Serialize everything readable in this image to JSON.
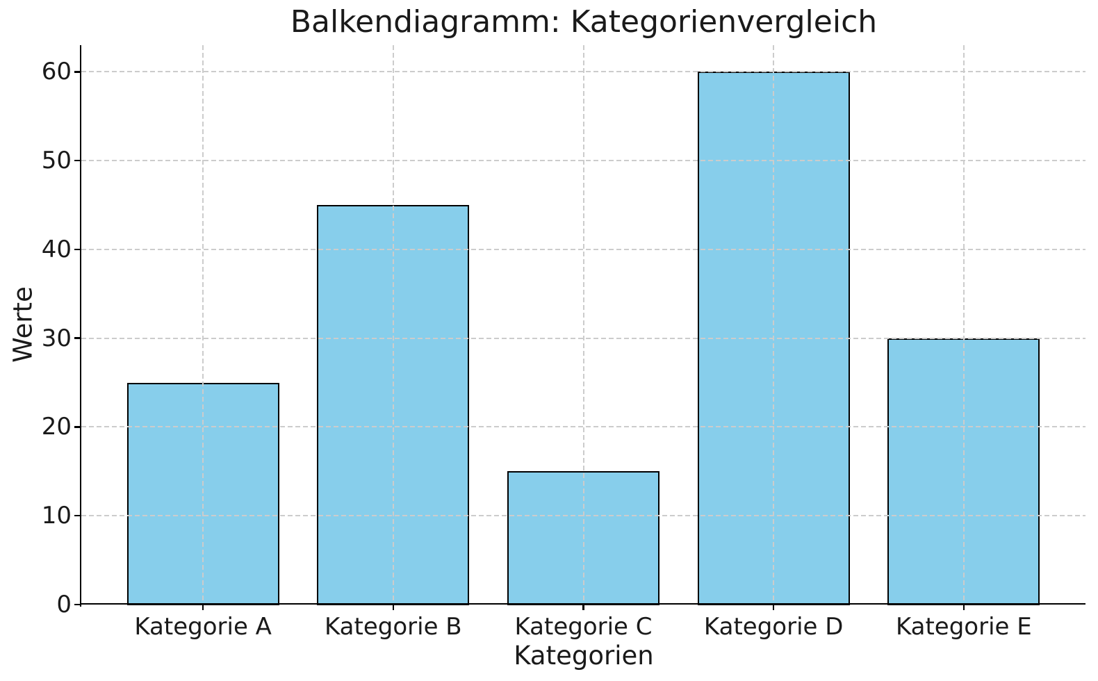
{
  "chart_data": {
    "type": "bar",
    "title": "Balkendiagramm: Kategorienvergleich",
    "xlabel": "Kategorien",
    "ylabel": "Werte",
    "categories": [
      "Kategorie A",
      "Kategorie B",
      "Kategorie C",
      "Kategorie D",
      "Kategorie E"
    ],
    "values": [
      25,
      45,
      15,
      60,
      30
    ],
    "yticks": [
      0,
      10,
      20,
      30,
      40,
      50,
      60
    ],
    "ylim": [
      0,
      63
    ],
    "bar_color": "#87CEEB",
    "bar_edge_color": "#000000",
    "grid": "on",
    "grid_color": "#cccccc",
    "grid_style": "dashed",
    "grid_above_bars": true,
    "axis_color": "#000000",
    "text_color": "#1a1a1a",
    "background_color": "#ffffff",
    "legend_position": "none"
  }
}
